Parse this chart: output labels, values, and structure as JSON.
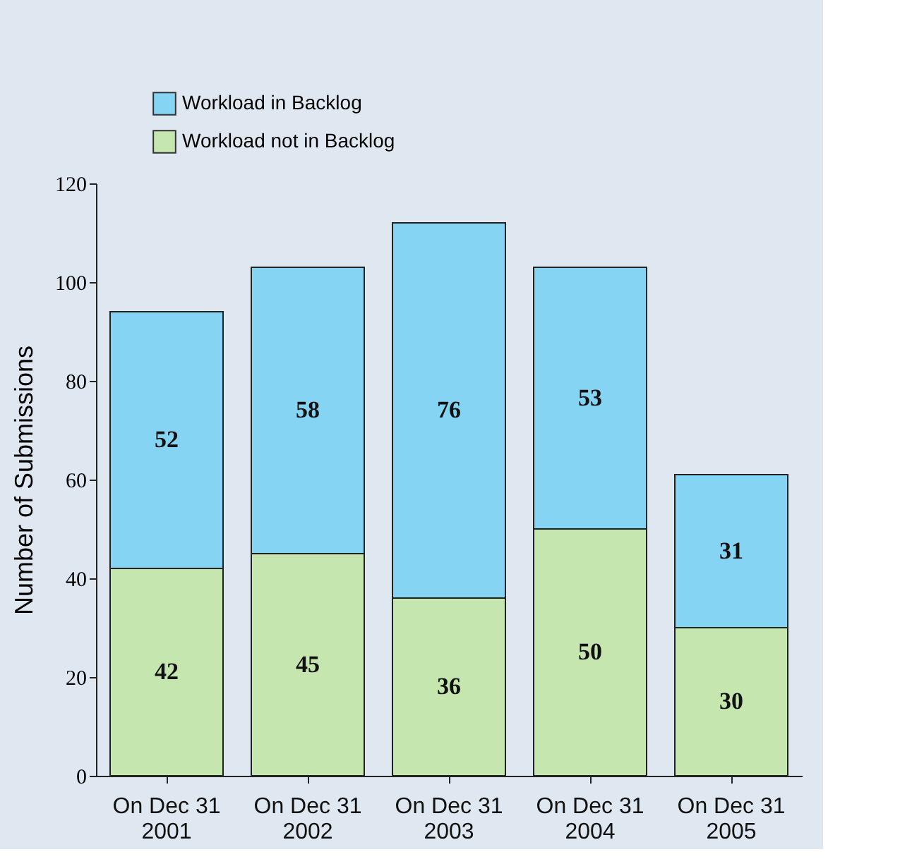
{
  "chart_data": {
    "type": "bar",
    "stacked": true,
    "ylabel": "Number of Submissions",
    "categories": [
      "On Dec 31\n2001",
      "On Dec 31\n2002",
      "On Dec 31\n2003",
      "On Dec 31\n2004",
      "On Dec 31\n2005"
    ],
    "series": [
      {
        "name": "Workload not in Backlog",
        "color": "#c6e6b0",
        "values": [
          42,
          45,
          36,
          50,
          30
        ]
      },
      {
        "name": "Workload in Backlog",
        "color": "#86d4f4",
        "values": [
          52,
          58,
          76,
          53,
          31
        ]
      }
    ],
    "ylim": [
      0,
      120
    ],
    "yticks": [
      0,
      20,
      40,
      60,
      80,
      100,
      120
    ],
    "grid": false,
    "legend": "top left",
    "data_labels": true
  }
}
